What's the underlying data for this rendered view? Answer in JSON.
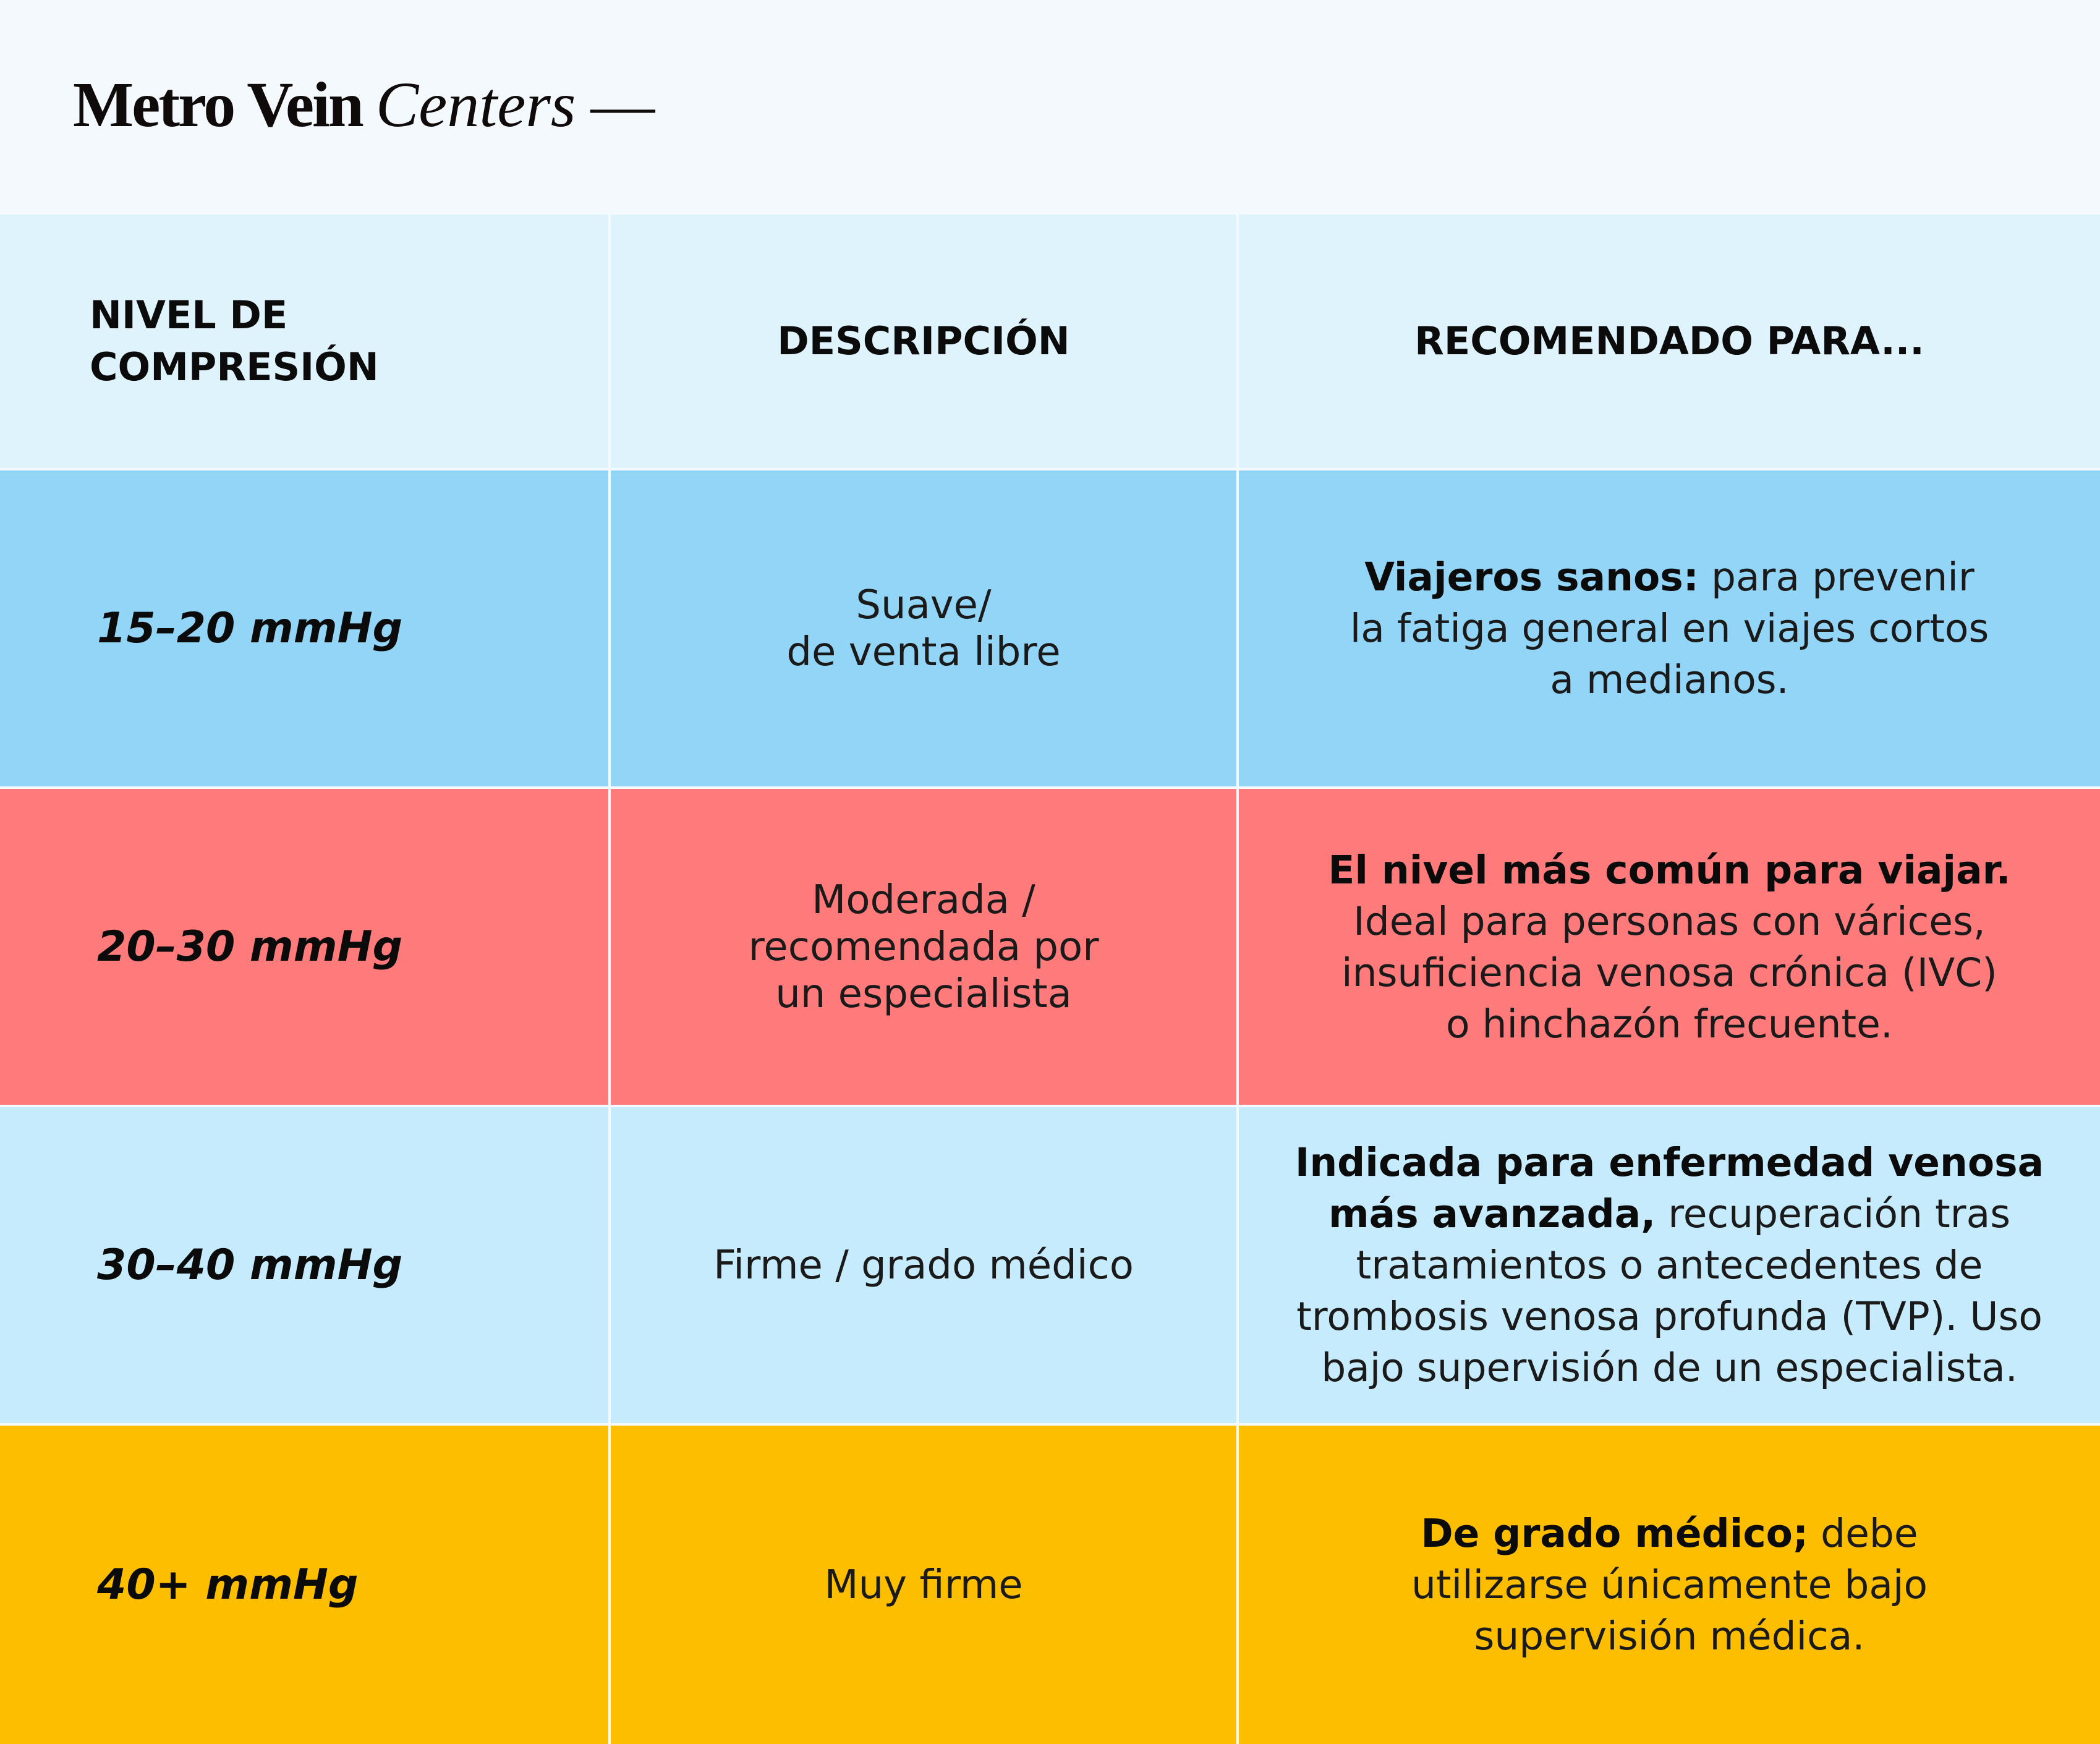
{
  "logo": {
    "bold": "Metro Vein",
    "italic": "Centers",
    "dash": "—"
  },
  "table": {
    "headers": {
      "level": [
        "NIVEL DE",
        "COMPRESIÓN"
      ],
      "description": "DESCRIPCIÓN",
      "recommended": "RECOMENDADO PARA..."
    },
    "rows": [
      {
        "level": "15–20 mmHg",
        "description": [
          "Suave/",
          "de venta libre"
        ],
        "recommended": {
          "lines": [
            {
              "bold": "Viajeros sanos:",
              "text": " para prevenir"
            },
            {
              "bold": "",
              "text": "la fatiga general en viajes cortos"
            },
            {
              "bold": "",
              "text": "a medianos."
            }
          ]
        },
        "color": "#93d5f7"
      },
      {
        "level": "20–30 mmHg",
        "description": [
          "Moderada /",
          "recomendada por",
          "un especialista"
        ],
        "recommended": {
          "lines": [
            {
              "bold": "El nivel más común para viajar.",
              "text": ""
            },
            {
              "bold": "",
              "text": "Ideal para personas con várices,"
            },
            {
              "bold": "",
              "text": "insuficiencia venosa crónica (IVC)"
            },
            {
              "bold": "",
              "text": "o hinchazón frecuente."
            }
          ]
        },
        "color": "#ff7b7b"
      },
      {
        "level": "30–40 mmHg",
        "description": [
          "Firme / grado médico"
        ],
        "recommended": {
          "lines": [
            {
              "bold": "Indicada para enfermedad venosa",
              "text": ""
            },
            {
              "bold": "más avanzada,",
              "text": " recuperación tras"
            },
            {
              "bold": "",
              "text": "tratamientos o antecedentes de"
            },
            {
              "bold": "",
              "text": "trombosis venosa profunda (TVP). Uso"
            },
            {
              "bold": "",
              "text": "bajo supervisión de un especialista."
            }
          ]
        },
        "color": "#c5ebfc"
      },
      {
        "level": "40+ mmHg",
        "description": [
          "Muy firme"
        ],
        "recommended": {
          "lines": [
            {
              "bold": "De grado médico;",
              "text": " debe"
            },
            {
              "bold": "",
              "text": "utilizarse únicamente bajo"
            },
            {
              "bold": "",
              "text": "supervisión médica."
            }
          ]
        },
        "color": "#fdbe00"
      }
    ]
  }
}
